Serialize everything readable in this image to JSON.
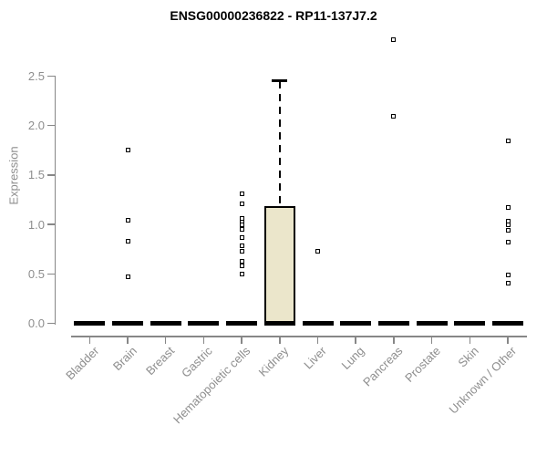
{
  "chart_data": {
    "type": "boxplot",
    "title": "ENSG00000236822 - RP11-137J7.2",
    "ylabel": "Expression",
    "xlabel": "",
    "ytick_labels": [
      "0.0",
      "0.5",
      "1.0",
      "1.5",
      "2.0",
      "2.5"
    ],
    "ylim": [
      0,
      2.9
    ],
    "grid": false,
    "legend": false,
    "categories": [
      "Bladder",
      "Brain",
      "Breast",
      "Gastric",
      "Hematopoietic cells",
      "Kidney",
      "Liver",
      "Lung",
      "Pancreas",
      "Prostate",
      "Skin",
      "Unknown / Other"
    ],
    "series": [
      {
        "category": "Bladder",
        "median": 0.0,
        "q1": 0.0,
        "q3": 0.0,
        "whisker_high": null,
        "outliers": []
      },
      {
        "category": "Brain",
        "median": 0.0,
        "q1": 0.0,
        "q3": 0.0,
        "whisker_high": null,
        "outliers": [
          1.75,
          1.04,
          0.83,
          0.47
        ]
      },
      {
        "category": "Breast",
        "median": 0.0,
        "q1": 0.0,
        "q3": 0.0,
        "whisker_high": null,
        "outliers": []
      },
      {
        "category": "Gastric",
        "median": 0.0,
        "q1": 0.0,
        "q3": 0.0,
        "whisker_high": null,
        "outliers": []
      },
      {
        "category": "Hematopoietic cells",
        "median": 0.0,
        "q1": 0.0,
        "q3": 0.0,
        "whisker_high": null,
        "outliers": [
          1.31,
          1.21,
          1.06,
          1.02,
          1.0,
          0.95,
          0.87,
          0.78,
          0.73,
          0.63,
          0.58,
          0.5
        ]
      },
      {
        "category": "Kidney",
        "median": 0.0,
        "q1": 0.0,
        "q3": 1.18,
        "whisker_high": 2.45,
        "outliers": []
      },
      {
        "category": "Liver",
        "median": 0.0,
        "q1": 0.0,
        "q3": 0.0,
        "whisker_high": null,
        "outliers": [
          0.73
        ]
      },
      {
        "category": "Lung",
        "median": 0.0,
        "q1": 0.0,
        "q3": 0.0,
        "whisker_high": null,
        "outliers": []
      },
      {
        "category": "Pancreas",
        "median": 0.0,
        "q1": 0.0,
        "q3": 0.0,
        "whisker_high": null,
        "outliers": [
          2.87,
          2.09
        ]
      },
      {
        "category": "Prostate",
        "median": 0.0,
        "q1": 0.0,
        "q3": 0.0,
        "whisker_high": null,
        "outliers": []
      },
      {
        "category": "Skin",
        "median": 0.0,
        "q1": 0.0,
        "q3": 0.0,
        "whisker_high": null,
        "outliers": []
      },
      {
        "category": "Unknown / Other",
        "median": 0.0,
        "q1": 0.0,
        "q3": 0.0,
        "whisker_high": null,
        "outliers": [
          1.84,
          1.17,
          1.03,
          1.0,
          0.94,
          0.82,
          0.49,
          0.41
        ]
      }
    ],
    "colors": {
      "box_fill": "#EBE6CB",
      "box_border": "#000000",
      "axis_line": "#878787",
      "axis_text": "#8E8E8E",
      "title_text": "#000000",
      "point": "#000000"
    }
  }
}
